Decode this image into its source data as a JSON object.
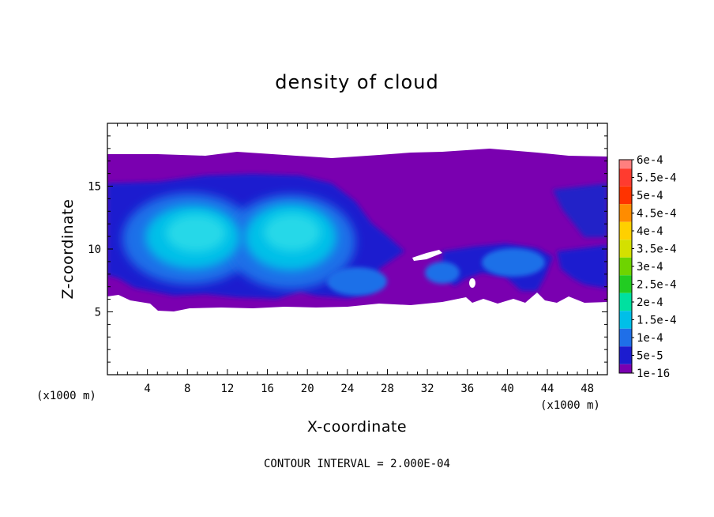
{
  "chart_data": {
    "type": "heatmap",
    "title": "density of cloud",
    "xlabel": "X-coordinate",
    "ylabel": "Z-coordinate",
    "x_unit_label": "(x1000 m)",
    "z_unit_label": "(x1000 m)",
    "footer": "CONTOUR INTERVAL = 2.000E-04",
    "xlim": [
      0,
      50
    ],
    "ylim": [
      0,
      20
    ],
    "x_ticks": [
      "4",
      "8",
      "12",
      "16",
      "20",
      "24",
      "28",
      "32",
      "36",
      "40",
      "44",
      "48"
    ],
    "y_ticks": [
      "5",
      "10",
      "15"
    ],
    "colorbar_labels": [
      "6e-4",
      "5.5e-4",
      "5e-4",
      "4.5e-4",
      "4e-4",
      "3.5e-4",
      "3e-4",
      "2.5e-4",
      "2e-4",
      "1.5e-4",
      "1e-4",
      "5e-5",
      "1e-16"
    ],
    "colorbar_colors": [
      "#ff7f7f",
      "#ff3b2f",
      "#ff3300",
      "#ff8c00",
      "#ffd000",
      "#d4e000",
      "#6ed400",
      "#22cc22",
      "#00e0a0",
      "#00bfe8",
      "#1f6fe8",
      "#1c1ccf",
      "#7a00b0"
    ],
    "cloud_top_km": 17.5,
    "cloud_base_km": 6.0,
    "max_density_regions": [
      {
        "center_km": [
          9,
          11.5
        ],
        "peak": "2e-4"
      },
      {
        "center_km": [
          18,
          11
        ],
        "peak": "2e-4"
      },
      {
        "center_km": [
          23,
          7.5
        ],
        "peak": "1.5e-4"
      },
      {
        "center_km": [
          42,
          8.5
        ],
        "peak": "1.5e-4"
      }
    ]
  }
}
